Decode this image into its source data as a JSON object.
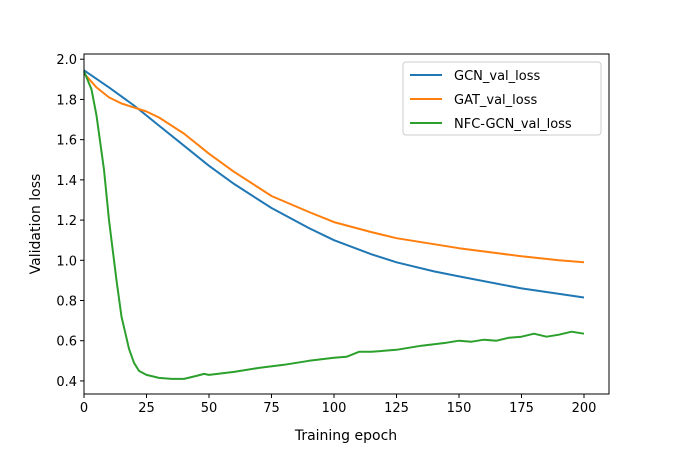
{
  "chart_data": {
    "type": "line",
    "title": "",
    "xlabel": "Training epoch",
    "ylabel": "Validation loss",
    "xlim": [
      0,
      210
    ],
    "ylim": [
      0.335,
      2.026
    ],
    "xticks": [
      0,
      25,
      50,
      75,
      100,
      125,
      150,
      175,
      200
    ],
    "yticks": [
      0.4,
      0.6,
      0.8,
      1.0,
      1.2,
      1.4,
      1.6,
      1.8,
      2.0
    ],
    "xtick_labels": [
      "0",
      "25",
      "50",
      "75",
      "100",
      "125",
      "150",
      "175",
      "200"
    ],
    "ytick_labels": [
      "0.4",
      "0.6",
      "0.8",
      "1.0",
      "1.2",
      "1.4",
      "1.6",
      "1.8",
      "2.0"
    ],
    "grid": false,
    "legend_position": "top-right",
    "series": [
      {
        "name": "GCN_val_loss",
        "color": "#1f77b4",
        "x": [
          0,
          10,
          20,
          25,
          30,
          40,
          50,
          60,
          75,
          90,
          100,
          115,
          125,
          140,
          150,
          175,
          200
        ],
        "y": [
          1.945,
          1.86,
          1.77,
          1.72,
          1.67,
          1.57,
          1.47,
          1.38,
          1.26,
          1.16,
          1.1,
          1.03,
          0.99,
          0.945,
          0.92,
          0.86,
          0.815
        ]
      },
      {
        "name": "GAT_val_loss",
        "color": "#ff7f0e",
        "x": [
          0,
          5,
          10,
          15,
          20,
          25,
          30,
          40,
          50,
          60,
          75,
          90,
          100,
          115,
          125,
          140,
          150,
          175,
          190,
          200
        ],
        "y": [
          1.93,
          1.86,
          1.81,
          1.78,
          1.76,
          1.74,
          1.71,
          1.63,
          1.53,
          1.44,
          1.32,
          1.24,
          1.19,
          1.14,
          1.11,
          1.08,
          1.06,
          1.02,
          1.0,
          0.99
        ]
      },
      {
        "name": "NFC-GCN_val_loss",
        "color": "#2ca02c",
        "x": [
          0,
          3,
          5,
          8,
          10,
          13,
          15,
          18,
          20,
          22,
          25,
          30,
          35,
          40,
          45,
          48,
          50,
          60,
          70,
          80,
          90,
          100,
          105,
          110,
          115,
          125,
          135,
          145,
          150,
          155,
          160,
          165,
          170,
          175,
          180,
          185,
          190,
          195,
          200
        ],
        "y": [
          1.94,
          1.85,
          1.72,
          1.45,
          1.2,
          0.9,
          0.72,
          0.56,
          0.49,
          0.45,
          0.43,
          0.415,
          0.41,
          0.41,
          0.425,
          0.435,
          0.43,
          0.445,
          0.465,
          0.48,
          0.5,
          0.515,
          0.52,
          0.545,
          0.545,
          0.555,
          0.575,
          0.59,
          0.6,
          0.595,
          0.605,
          0.6,
          0.615,
          0.62,
          0.635,
          0.62,
          0.63,
          0.645,
          0.635
        ]
      }
    ]
  }
}
